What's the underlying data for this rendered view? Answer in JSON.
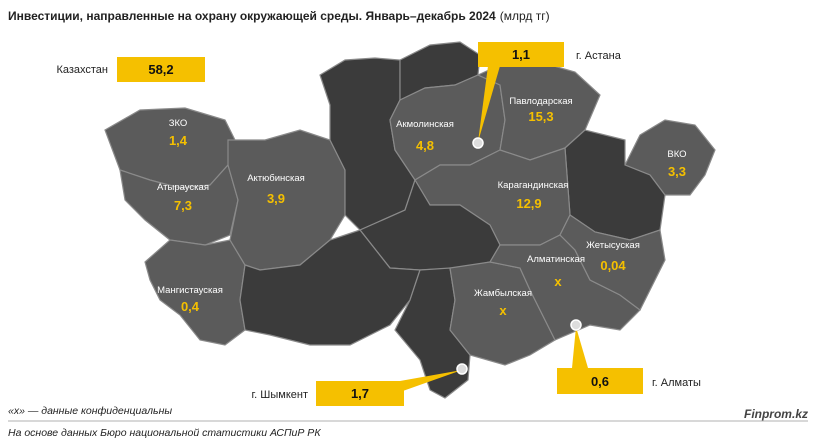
{
  "title": {
    "main": "Инвестиции, направленные на охрану окружающей среды. Январь–декабрь 2024",
    "unit": "(млрд тг)"
  },
  "total": {
    "label": "Казахстан",
    "value": "58,2"
  },
  "regions": [
    {
      "name": "ЗКО",
      "value": "1,4"
    },
    {
      "name": "Атырауская",
      "value": "7,3"
    },
    {
      "name": "Актюбинская",
      "value": "3,9"
    },
    {
      "name": "Мангистауская",
      "value": "0,4"
    },
    {
      "name": "Акмолинская",
      "value": "4,8"
    },
    {
      "name": "Павлодарская",
      "value": "15,3"
    },
    {
      "name": "ВКО",
      "value": "3,3"
    },
    {
      "name": "Карагандинская",
      "value": "12,9"
    },
    {
      "name": "Жетысуская",
      "value": "0,04"
    },
    {
      "name": "Алматинская",
      "value": "х"
    },
    {
      "name": "Жамбылская",
      "value": "х"
    }
  ],
  "cities": [
    {
      "name": "г. Астана",
      "value": "1,1"
    },
    {
      "name": "г. Шымкент",
      "value": "1,7"
    },
    {
      "name": "г. Алматы",
      "value": "0,6"
    }
  ],
  "footnote": "«х» — данные конфиденциальны",
  "source": "На основе данных Бюро национальной статистики АСПиР РК",
  "brand": "Finprom.kz"
}
